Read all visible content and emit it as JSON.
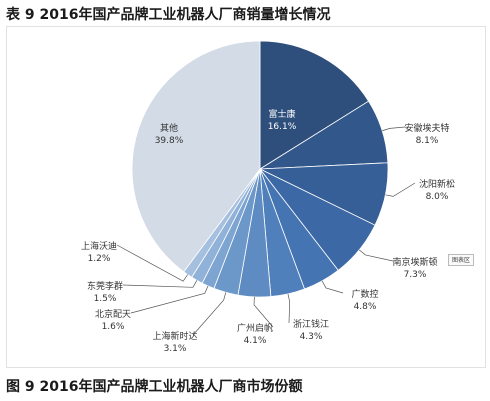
{
  "header": {
    "title": "表 9 2016年国产品牌工业机器人厂商销量增长情况"
  },
  "footer": {
    "caption": "图 9  2016年国产品牌工业机器人厂商市场份额"
  },
  "legend": {
    "label": "图表区"
  },
  "chart_data": {
    "type": "pie",
    "slices": [
      {
        "name": "富士康",
        "pct_label": "16.1%",
        "value": 16.1,
        "color": "#2e4f7c"
      },
      {
        "name": "安徽埃夫特",
        "pct_label": "8.1%",
        "value": 8.1,
        "color": "#32578b"
      },
      {
        "name": "沈阳新松",
        "pct_label": "8.0%",
        "value": 8.0,
        "color": "#365f97"
      },
      {
        "name": "南京埃斯顿",
        "pct_label": "7.3%",
        "value": 7.3,
        "color": "#3c69a6"
      },
      {
        "name": "广数控",
        "pct_label": "4.8%",
        "value": 4.8,
        "color": "#4474b2"
      },
      {
        "name": "浙江钱江",
        "pct_label": "4.3%",
        "value": 4.3,
        "color": "#5080bb"
      },
      {
        "name": "广州启帆",
        "pct_label": "4.1%",
        "value": 4.1,
        "color": "#5d8bc2"
      },
      {
        "name": "上海新时达",
        "pct_label": "3.1%",
        "value": 3.1,
        "color": "#6c97c9"
      },
      {
        "name": "北京配天",
        "pct_label": "1.6%",
        "value": 1.6,
        "color": "#7ea4d1"
      },
      {
        "name": "东莞李群",
        "pct_label": "1.5%",
        "value": 1.5,
        "color": "#91b2d8"
      },
      {
        "name": "上海沃迪",
        "pct_label": "1.2%",
        "value": 1.2,
        "color": "#a5c0df"
      },
      {
        "name": "其他",
        "pct_label": "39.8%",
        "value": 39.8,
        "color": "#d3dbe6"
      }
    ]
  }
}
